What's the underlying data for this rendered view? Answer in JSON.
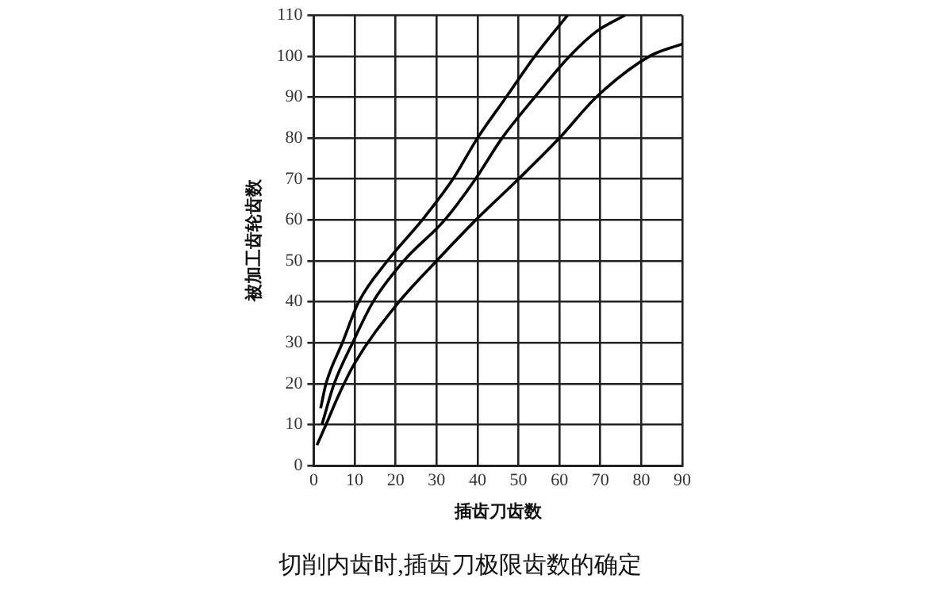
{
  "chart_data": {
    "type": "line",
    "title": "切削内齿时,插齿刀极限齿数的确定",
    "xlabel": "插齿刀齿数",
    "ylabel": "被加工齿轮齿数",
    "xlim": [
      0,
      90
    ],
    "xticks": [
      0,
      10,
      20,
      30,
      40,
      50,
      60,
      70,
      80,
      90
    ],
    "ylim": [
      0,
      110
    ],
    "yticks": [
      0,
      10,
      20,
      30,
      40,
      50,
      60,
      70,
      80,
      90,
      100,
      110
    ],
    "grid": true,
    "marker": "none",
    "line_style": "solid",
    "series": [
      {
        "color": "#000000",
        "x": [
          1.7,
          3,
          7,
          11,
          18,
          26.5,
          34,
          40,
          47,
          54,
          62
        ],
        "values": [
          14,
          20,
          30,
          40,
          50,
          60,
          70,
          80,
          90,
          100,
          110
        ]
      },
      {
        "color": "#000000",
        "x": [
          2,
          5,
          9.5,
          14.5,
          22,
          32,
          39.5,
          46,
          54,
          62.5,
          69,
          76
        ],
        "values": [
          10,
          20,
          30,
          40,
          50,
          60,
          70,
          80,
          90,
          100,
          106,
          110
        ]
      },
      {
        "color": "#000000",
        "x": [
          0.8,
          3,
          6,
          10,
          20,
          30,
          39.6,
          50,
          60,
          69,
          82,
          90
        ],
        "values": [
          5,
          10,
          17,
          25,
          39,
          50,
          60,
          70,
          80,
          90,
          100,
          103
        ]
      }
    ]
  }
}
